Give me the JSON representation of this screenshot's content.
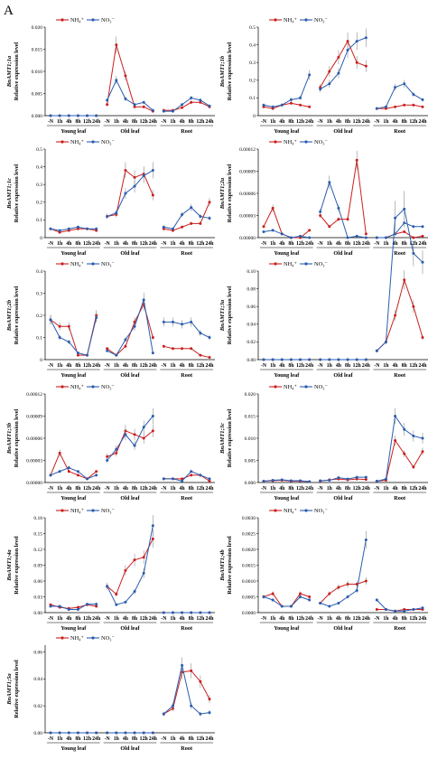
{
  "figure": {
    "panel_letter": "A",
    "legend": [
      "NH₄⁺",
      "NO₃⁻"
    ],
    "colors": {
      "nh4": "#cc1f1f",
      "no3": "#2a5db0"
    }
  },
  "chart_data": [
    {
      "type": "line",
      "gene": "BnAMT1;1a",
      "ylabel": "Relative expression level",
      "y_ticks": [
        "0.000",
        "0.005",
        "0.010",
        "0.015",
        "0.020"
      ],
      "ylim": [
        0,
        0.02
      ],
      "group_labels": [
        "Young leaf",
        "Old leaf",
        "Root"
      ],
      "time_labels": [
        "-N",
        "1h",
        "4h",
        "8h",
        "12h",
        "24h"
      ],
      "series": [
        {
          "name": "NH₄⁺",
          "values": [
            [
              0,
              0,
              0,
              0,
              0,
              0
            ],
            [
              0.0025,
              0.016,
              0.009,
              0.002,
              0.002,
              0.001
            ],
            [
              0.0012,
              0.0012,
              0.0018,
              0.003,
              0.003,
              0.002
            ]
          ]
        },
        {
          "name": "NO₃⁻",
          "values": [
            [
              0,
              0,
              0,
              0,
              0,
              0
            ],
            [
              0.0035,
              0.008,
              0.0038,
              0.0025,
              0.003,
              0.0012
            ],
            [
              0.001,
              0.001,
              0.0025,
              0.004,
              0.0035,
              0.0022
            ]
          ]
        }
      ]
    },
    {
      "type": "line",
      "gene": "BnAMT1;1b",
      "ylabel": "Relative expression level",
      "y_ticks": [
        "0",
        "0.1",
        "0.2",
        "0.3",
        "0.4",
        "0.5"
      ],
      "ylim": [
        0,
        0.5
      ],
      "group_labels": [
        "Young leaf",
        "Old leaf",
        "Root"
      ],
      "time_labels": [
        "-N",
        "1h",
        "4h",
        "8h",
        "12h",
        "24h"
      ],
      "series": [
        {
          "name": "NH₄⁺",
          "values": [
            [
              0.05,
              0.04,
              0.06,
              0.07,
              0.06,
              0.05
            ],
            [
              0.16,
              0.25,
              0.33,
              0.42,
              0.3,
              0.28
            ],
            [
              0.04,
              0.04,
              0.05,
              0.06,
              0.06,
              0.05
            ]
          ]
        },
        {
          "name": "NO₃⁻",
          "values": [
            [
              0.06,
              0.05,
              0.06,
              0.09,
              0.1,
              0.23
            ],
            [
              0.15,
              0.18,
              0.24,
              0.37,
              0.42,
              0.44
            ],
            [
              0.04,
              0.05,
              0.16,
              0.18,
              0.12,
              0.09
            ]
          ]
        }
      ]
    },
    {
      "type": "line",
      "gene": "BnAMT1;1c",
      "ylabel": "Relative expression level",
      "y_ticks": [
        "0",
        "0.1",
        "0.2",
        "0.3",
        "0.4",
        "0.5"
      ],
      "ylim": [
        0,
        0.5
      ],
      "group_labels": [
        "Young leaf",
        "Old leaf",
        "Root"
      ],
      "time_labels": [
        "-N",
        "1h",
        "4h",
        "8h",
        "12h",
        "24h"
      ],
      "series": [
        {
          "name": "NH₄⁺",
          "values": [
            [
              0.05,
              0.03,
              0.04,
              0.05,
              0.05,
              0.04
            ],
            [
              0.12,
              0.13,
              0.38,
              0.34,
              0.36,
              0.24
            ],
            [
              0.05,
              0.04,
              0.06,
              0.08,
              0.08,
              0.2
            ]
          ]
        },
        {
          "name": "NO₃⁻",
          "values": [
            [
              0.05,
              0.04,
              0.05,
              0.06,
              0.05,
              0.05
            ],
            [
              0.12,
              0.14,
              0.25,
              0.29,
              0.35,
              0.38
            ],
            [
              0.06,
              0.05,
              0.13,
              0.17,
              0.12,
              0.11
            ]
          ]
        }
      ]
    },
    {
      "type": "line",
      "gene": "BnAMT1;2a",
      "ylabel": "Relative expression level",
      "y_ticks": [
        "0.00000",
        "0.00003",
        "0.00006",
        "0.00009",
        "0.00012"
      ],
      "ylim": [
        0,
        0.00012
      ],
      "group_labels": [
        "Young leaf",
        "Old leaf",
        "Root"
      ],
      "time_labels": [
        "-N",
        "1h",
        "4h",
        "8h",
        "12h",
        "24h"
      ],
      "series": [
        {
          "name": "NH₄⁺",
          "values": [
            [
              1.5e-05,
              4e-05,
              5e-06,
              0,
              0,
              1e-05
            ],
            [
              3e-05,
              1.5e-05,
              2.5e-05,
              2.5e-05,
              0.000105,
              5e-06
            ],
            [
              0,
              0,
              5e-06,
              8e-06,
              0,
              2e-06
            ]
          ]
        },
        {
          "name": "NO₃⁻",
          "values": [
            [
              8e-06,
              1e-05,
              5e-06,
              0,
              2e-06,
              0
            ],
            [
              3.5e-05,
              7.5e-05,
              4e-05,
              0,
              2e-06,
              0
            ],
            [
              0,
              0,
              5e-06,
              2e-05,
              1.5e-05,
              1.5e-05
            ]
          ]
        }
      ]
    },
    {
      "type": "line",
      "gene": "BnAMT1;2b",
      "ylabel": "Relative expression level",
      "y_ticks": [
        "0",
        "0.1",
        "0.2",
        "0.3",
        "0.4"
      ],
      "ylim": [
        0,
        0.4
      ],
      "group_labels": [
        "Young leaf",
        "Old leaf",
        "Root"
      ],
      "time_labels": [
        "-N",
        "1h",
        "4h",
        "8h",
        "12h",
        "24h"
      ],
      "series": [
        {
          "name": "NH₄⁺",
          "values": [
            [
              0.18,
              0.15,
              0.15,
              0.02,
              0.02,
              0.2
            ],
            [
              0.05,
              0.02,
              0.06,
              0.17,
              0.25,
              0.1
            ],
            [
              0.06,
              0.05,
              0.05,
              0.05,
              0.02,
              0.01
            ]
          ]
        },
        {
          "name": "NO₃⁻",
          "values": [
            [
              0.18,
              0.1,
              0.08,
              0.03,
              0.02,
              0.19
            ],
            [
              0.04,
              0.02,
              0.09,
              0.15,
              0.27,
              0.03
            ],
            [
              0.17,
              0.17,
              0.16,
              0.17,
              0.12,
              0.1
            ]
          ]
        }
      ]
    },
    {
      "type": "line",
      "gene": "BnAMT1;3a",
      "ylabel": "Relative expression level",
      "y_ticks": [
        "0.00",
        "0.02",
        "0.04",
        "0.06",
        "0.08",
        "0.10"
      ],
      "ylim": [
        0,
        0.1
      ],
      "group_labels": [
        "Young leaf",
        "Old leaf",
        "Root"
      ],
      "time_labels": [
        "-N",
        "1h",
        "4h",
        "8h",
        "12h",
        "24h"
      ],
      "series": [
        {
          "name": "NH₄⁺",
          "values": [
            [
              0,
              0,
              0,
              0,
              0,
              0
            ],
            [
              0,
              0,
              0,
              0,
              0,
              0
            ],
            [
              0.01,
              0.02,
              0.05,
              0.09,
              0.06,
              0.025
            ]
          ]
        },
        {
          "name": "NO₃⁻",
          "values": [
            [
              0,
              0,
              0,
              0,
              0,
              0
            ],
            [
              0,
              0,
              0,
              0,
              0,
              0
            ],
            [
              0.01,
              0.02,
              0.16,
              0.17,
              0.12,
              0.11
            ]
          ]
        }
      ]
    },
    {
      "type": "line",
      "gene": "BnAMT1;3b",
      "ylabel": "Relative expression level",
      "y_ticks": [
        "0.00000",
        "0.00003",
        "0.00006",
        "0.00009",
        "0.00012"
      ],
      "ylim": [
        0,
        0.00012
      ],
      "group_labels": [
        "Young leaf",
        "Old leaf",
        "Root"
      ],
      "time_labels": [
        "-N",
        "1h",
        "4h",
        "8h",
        "12h",
        "24h"
      ],
      "series": [
        {
          "name": "NH₄⁺",
          "values": [
            [
              1e-05,
              4e-05,
              1.5e-05,
              1e-05,
              5e-06,
              1.5e-05
            ],
            [
              3.5e-05,
              4e-05,
              7e-05,
              6.5e-05,
              6e-05,
              7e-05
            ],
            [
              5e-06,
              5e-06,
              5e-06,
              1e-05,
              1e-05,
              2e-06
            ]
          ]
        },
        {
          "name": "NO₃⁻",
          "values": [
            [
              1e-05,
              1.5e-05,
              2e-05,
              1.5e-05,
              5e-06,
              1e-05
            ],
            [
              3e-05,
              4.5e-05,
              6.5e-05,
              5e-05,
              7.5e-05,
              9e-05
            ],
            [
              5e-06,
              5e-06,
              2e-06,
              1.5e-05,
              1e-05,
              5e-06
            ]
          ]
        }
      ]
    },
    {
      "type": "line",
      "gene": "BnAMT1;3c",
      "ylabel": "Relative expression level",
      "y_ticks": [
        "0.000",
        "0.005",
        "0.010",
        "0.015",
        "0.020"
      ],
      "ylim": [
        0,
        0.02
      ],
      "group_labels": [
        "Young leaf",
        "Old leaf",
        "Root"
      ],
      "time_labels": [
        "-N",
        "1h",
        "4h",
        "8h",
        "12h",
        "24h"
      ],
      "series": [
        {
          "name": "NH₄⁺",
          "values": [
            [
              0.0003,
              0.0004,
              0.0005,
              0.0003,
              0.0003,
              0.0002
            ],
            [
              0.0003,
              0.0006,
              0.0008,
              0.0006,
              0.0008,
              0.0007
            ],
            [
              0.0003,
              0.0005,
              0.0095,
              0.0065,
              0.0035,
              0.007
            ]
          ]
        },
        {
          "name": "NO₃⁻",
          "values": [
            [
              0.0003,
              0.0005,
              0.0006,
              0.0004,
              0.0004,
              0.0002
            ],
            [
              0.0004,
              0.0005,
              0.0011,
              0.0008,
              0.0012,
              0.0012
            ],
            [
              0.0003,
              0.0008,
              0.015,
              0.012,
              0.0105,
              0.01
            ]
          ]
        }
      ]
    },
    {
      "type": "line",
      "gene": "BnAMT1;4a",
      "ylabel": "Relative expression level",
      "y_ticks": [
        "0.00",
        "0.03",
        "0.06",
        "0.09",
        "0.12",
        "0.15",
        "0.18"
      ],
      "ylim": [
        0,
        0.18
      ],
      "group_labels": [
        "Young leaf",
        "Old leaf",
        "Root"
      ],
      "time_labels": [
        "-N",
        "1h",
        "4h",
        "8h",
        "12h",
        "24h"
      ],
      "series": [
        {
          "name": "NH₄⁺",
          "values": [
            [
              0.015,
              0.01,
              0.008,
              0.01,
              0.015,
              0.012
            ],
            [
              0.05,
              0.035,
              0.08,
              0.1,
              0.105,
              0.14
            ],
            [
              0,
              0,
              0,
              0,
              0,
              0
            ]
          ]
        },
        {
          "name": "NO₃⁻",
          "values": [
            [
              0.012,
              0.012,
              0.006,
              0.006,
              0.016,
              0.016
            ],
            [
              0.05,
              0.015,
              0.02,
              0.04,
              0.075,
              0.165
            ],
            [
              0,
              0,
              0,
              0,
              0,
              0
            ]
          ]
        }
      ]
    },
    {
      "type": "line",
      "gene": "BnAMT1;4b",
      "ylabel": "Relative expression level",
      "y_ticks": [
        "0.0000",
        "0.0005",
        "0.0010",
        "0.0015",
        "0.0020",
        "0.0025",
        "0.0030"
      ],
      "ylim": [
        0,
        0.003
      ],
      "group_labels": [
        "Young leaf",
        "Old leaf",
        "Root"
      ],
      "time_labels": [
        "-N",
        "1h",
        "4h",
        "8h",
        "12h",
        "24h"
      ],
      "series": [
        {
          "name": "NH₄⁺",
          "values": [
            [
              0.0005,
              0.0006,
              0.0002,
              0.0002,
              0.0006,
              0.0005
            ],
            [
              0.0003,
              0.0006,
              0.0008,
              0.0009,
              0.0009,
              0.001
            ],
            [
              0.0001,
              0.0001,
              5e-05,
              0.0001,
              0.0001,
              0.0001
            ]
          ]
        },
        {
          "name": "NO₃⁻",
          "values": [
            [
              0.0005,
              0.0004,
              0.0002,
              0.0002,
              0.0005,
              0.0004
            ],
            [
              0.0003,
              0.0002,
              0.0003,
              0.0005,
              0.0007,
              0.0023
            ],
            [
              0.0004,
              0.0001,
              5e-05,
              5e-05,
              0.0001,
              0.00015
            ]
          ]
        }
      ]
    },
    {
      "type": "line",
      "gene": "BnAMT1;5a",
      "ylabel": "Relative expression level",
      "y_ticks": [
        "0.00",
        "0.02",
        "0.04",
        "0.06"
      ],
      "ylim": [
        0,
        0.065
      ],
      "group_labels": [
        "Young leaf",
        "Old leaf",
        "Root"
      ],
      "time_labels": [
        "-N",
        "1h",
        "4h",
        "8h",
        "12h",
        "24h"
      ],
      "series": [
        {
          "name": "NH₄⁺",
          "values": [
            [
              0,
              0,
              0,
              0,
              0,
              0
            ],
            [
              0,
              0,
              0,
              0,
              0,
              0
            ],
            [
              0.014,
              0.018,
              0.045,
              0.046,
              0.038,
              0.025
            ]
          ]
        },
        {
          "name": "NO₃⁻",
          "values": [
            [
              0,
              0,
              0,
              0,
              0,
              0
            ],
            [
              0,
              0,
              0,
              0,
              0,
              0
            ],
            [
              0.014,
              0.02,
              0.05,
              0.02,
              0.014,
              0.015
            ]
          ]
        }
      ]
    }
  ]
}
